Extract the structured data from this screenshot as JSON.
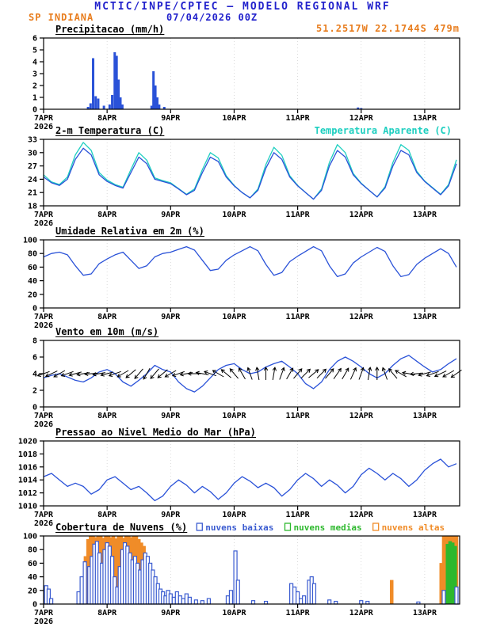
{
  "header": {
    "title": "MCTIC/INPE/CPTEC — MODELO REGIONAL WRF",
    "station": "SP INDIANA",
    "run_datetime": "07/04/2026 00Z",
    "coordinates": "51.2517W 22.1744S 479m"
  },
  "colors": {
    "header_blue": "#2222cc",
    "accent_orange": "#e87d1e",
    "line_blue": "#2a52d8",
    "aparente_cyan": "#1ecfc0",
    "cloud_low_blue": "#3a5bd0",
    "cloud_mid_green": "#2db82d",
    "cloud_high_orange": "#f08c28",
    "barb_black": "#000000"
  },
  "x_axis": {
    "tick_labels": [
      "7APR",
      "8APR",
      "9APR",
      "10APR",
      "11APR",
      "12APR",
      "13APR"
    ],
    "year_label": "2026",
    "t_max_days": 6.55
  },
  "chart_data": [
    {
      "id": "precipitation",
      "type": "bar",
      "title": "Precipitacao (mm/h)",
      "ylim": [
        0,
        6
      ],
      "yticks": [
        0,
        1,
        2,
        3,
        4,
        5,
        6
      ],
      "color_key": "line_blue",
      "points": [
        [
          0.7,
          0.2
        ],
        [
          0.74,
          0.5
        ],
        [
          0.78,
          4.3
        ],
        [
          0.82,
          1.1
        ],
        [
          0.86,
          0.9
        ],
        [
          0.95,
          0.3
        ],
        [
          1.04,
          0.4
        ],
        [
          1.08,
          1.2
        ],
        [
          1.12,
          4.8
        ],
        [
          1.15,
          4.5
        ],
        [
          1.18,
          2.5
        ],
        [
          1.21,
          1.0
        ],
        [
          1.24,
          0.4
        ],
        [
          1.7,
          0.3
        ],
        [
          1.73,
          3.2
        ],
        [
          1.76,
          2.0
        ],
        [
          1.79,
          1.0
        ],
        [
          1.82,
          0.4
        ],
        [
          1.9,
          0.2
        ],
        [
          4.95,
          0.15
        ],
        [
          5.0,
          0.1
        ]
      ]
    },
    {
      "id": "temperature",
      "type": "line",
      "title": "2-m Temperatura (C)",
      "legend": {
        "label": "Temperatura Aparente (C)",
        "color_key": "aparente_cyan"
      },
      "ylim": [
        18,
        33
      ],
      "yticks": [
        18,
        21,
        24,
        27,
        30,
        33
      ],
      "t_step_days": 0.125,
      "series": [
        {
          "name": "2-m Temperatura (C)",
          "color_key": "line_blue",
          "values": [
            24.5,
            23.2,
            22.6,
            24.0,
            28.5,
            31.0,
            29.5,
            25.0,
            23.5,
            22.6,
            22.0,
            25.5,
            29.0,
            27.5,
            24.0,
            23.5,
            23.0,
            21.8,
            20.5,
            21.5,
            25.5,
            29.0,
            28.0,
            24.5,
            22.5,
            21.0,
            19.8,
            21.5,
            26.5,
            30.0,
            28.5,
            24.5,
            22.5,
            21.0,
            19.5,
            21.5,
            27.0,
            30.5,
            29.0,
            25.0,
            23.0,
            21.5,
            20.0,
            22.0,
            27.0,
            30.5,
            29.5,
            25.5,
            23.5,
            22.0,
            20.5,
            22.5,
            27.5
          ]
        },
        {
          "name": "Temperatura Aparente (C)",
          "color_key": "aparente_cyan",
          "values": [
            25.0,
            23.4,
            22.8,
            24.5,
            29.5,
            32.3,
            30.5,
            25.5,
            23.8,
            22.8,
            22.2,
            26.2,
            30.0,
            28.3,
            24.3,
            23.7,
            23.2,
            21.9,
            20.6,
            21.8,
            26.2,
            30.0,
            28.8,
            24.8,
            22.6,
            21.0,
            19.8,
            21.8,
            27.3,
            31.2,
            29.4,
            24.8,
            22.6,
            21.0,
            19.5,
            21.8,
            27.8,
            31.8,
            30.0,
            25.3,
            23.1,
            21.5,
            20.0,
            22.3,
            27.8,
            31.8,
            30.5,
            25.8,
            23.6,
            22.1,
            20.6,
            22.8,
            28.4
          ]
        }
      ]
    },
    {
      "id": "relative-humidity",
      "type": "line",
      "title": "Umidade Relativa em 2m (%)",
      "ylim": [
        0,
        100
      ],
      "yticks": [
        0,
        20,
        40,
        60,
        80,
        100
      ],
      "t_step_days": 0.125,
      "series": [
        {
          "name": "Umidade Relativa em 2m (%)",
          "color_key": "line_blue",
          "values": [
            75,
            80,
            82,
            78,
            62,
            48,
            50,
            65,
            72,
            78,
            82,
            70,
            58,
            62,
            75,
            80,
            82,
            86,
            90,
            85,
            70,
            55,
            57,
            70,
            78,
            84,
            90,
            84,
            64,
            48,
            52,
            68,
            76,
            83,
            90,
            84,
            62,
            46,
            50,
            66,
            75,
            82,
            89,
            83,
            62,
            46,
            49,
            64,
            73,
            80,
            87,
            80,
            60
          ]
        }
      ]
    },
    {
      "id": "wind-10m",
      "type": "wind",
      "title": "Vento em 10m (m/s)",
      "ylim": [
        0,
        8
      ],
      "yticks": [
        0,
        2,
        4,
        6,
        8
      ],
      "t_step_days": 0.125,
      "series": [
        {
          "name": "Vento em 10m (m/s)",
          "color_key": "line_blue",
          "values": [
            3.5,
            3.8,
            4.0,
            3.6,
            3.2,
            3.0,
            3.5,
            4.2,
            4.5,
            4.0,
            3.0,
            2.5,
            3.2,
            4.0,
            5.0,
            4.5,
            4.2,
            3.0,
            2.2,
            1.8,
            2.5,
            3.5,
            4.5,
            5.0,
            5.2,
            4.5,
            4.0,
            4.2,
            4.8,
            5.2,
            5.5,
            4.8,
            4.0,
            2.8,
            2.2,
            3.0,
            4.5,
            5.5,
            6.0,
            5.5,
            4.8,
            4.0,
            3.5,
            4.0,
            5.0,
            5.8,
            6.2,
            5.5,
            4.8,
            4.2,
            4.5,
            5.2,
            5.8
          ]
        }
      ],
      "barbs": {
        "level": 4.0,
        "color_key": "barb_black",
        "dir_deg": [
          200,
          205,
          210,
          200,
          195,
          190,
          185,
          190,
          195,
          200,
          210,
          220,
          230,
          240,
          230,
          220,
          210,
          200,
          190,
          180,
          170,
          160,
          150,
          140,
          130,
          120,
          110,
          100,
          90,
          80,
          70,
          60,
          50,
          45,
          40,
          45,
          50,
          55,
          60,
          65,
          70,
          80,
          90,
          110,
          130,
          150,
          170,
          185,
          195,
          200,
          205,
          210,
          215
        ]
      }
    },
    {
      "id": "mslp",
      "type": "line",
      "title": "Pressao ao Nivel Medio do Mar (hPa)",
      "ylim": [
        1010,
        1020
      ],
      "yticks": [
        1010,
        1012,
        1014,
        1016,
        1018,
        1020
      ],
      "t_step_days": 0.125,
      "series": [
        {
          "name": "Pressao ao Nivel Medio do Mar (hPa)",
          "color_key": "line_blue",
          "values": [
            1014.5,
            1015.0,
            1014.0,
            1013.0,
            1013.5,
            1013.0,
            1011.8,
            1012.5,
            1014.0,
            1014.5,
            1013.5,
            1012.5,
            1013.0,
            1012.0,
            1010.8,
            1011.5,
            1013.0,
            1014.0,
            1013.2,
            1012.0,
            1013.0,
            1012.2,
            1011.0,
            1012.0,
            1013.5,
            1014.5,
            1013.8,
            1012.8,
            1013.5,
            1012.8,
            1011.5,
            1012.5,
            1014.0,
            1015.0,
            1014.2,
            1013.0,
            1014.0,
            1013.2,
            1012.0,
            1013.0,
            1014.8,
            1015.8,
            1015.0,
            1014.0,
            1015.0,
            1014.2,
            1013.0,
            1014.0,
            1015.5,
            1016.5,
            1017.2,
            1016.0,
            1016.5
          ]
        }
      ]
    },
    {
      "id": "cloud-cover",
      "type": "cloudbars",
      "title": "Cobertura de Nuvens (%)",
      "ylim": [
        0,
        100
      ],
      "yticks": [
        0,
        20,
        40,
        60,
        80,
        100
      ],
      "legend_items": [
        {
          "label": "nuvens baixas",
          "color_key": "cloud_low_blue"
        },
        {
          "label": "nuvens medias",
          "color_key": "cloud_mid_green"
        },
        {
          "label": "nuvens altas",
          "color_key": "cloud_high_orange"
        }
      ],
      "series": [
        {
          "name": "nuvens altas",
          "color_key": "cloud_high_orange",
          "fill": "solid",
          "points": [
            [
              0.62,
              35
            ],
            [
              0.66,
              70
            ],
            [
              0.7,
              95
            ],
            [
              0.74,
              100
            ],
            [
              0.78,
              100
            ],
            [
              0.82,
              98
            ],
            [
              0.86,
              100
            ],
            [
              0.9,
              100
            ],
            [
              0.94,
              97
            ],
            [
              0.98,
              100
            ],
            [
              1.02,
              100
            ],
            [
              1.06,
              98
            ],
            [
              1.1,
              100
            ],
            [
              1.14,
              96
            ],
            [
              1.18,
              100
            ],
            [
              1.22,
              100
            ],
            [
              1.26,
              97
            ],
            [
              1.3,
              100
            ],
            [
              1.34,
              100
            ],
            [
              1.38,
              98
            ],
            [
              1.42,
              100
            ],
            [
              1.46,
              100
            ],
            [
              1.5,
              95
            ],
            [
              1.54,
              90
            ],
            [
              1.58,
              85
            ],
            [
              1.62,
              45
            ],
            [
              1.66,
              20
            ],
            [
              5.48,
              35
            ],
            [
              6.26,
              60
            ],
            [
              6.3,
              100
            ],
            [
              6.34,
              100
            ],
            [
              6.38,
              100
            ],
            [
              6.42,
              100
            ],
            [
              6.46,
              100
            ],
            [
              6.5,
              100
            ]
          ]
        },
        {
          "name": "nuvens medias",
          "color_key": "cloud_mid_green",
          "fill": "solid",
          "points": [
            [
              6.36,
              88
            ],
            [
              6.4,
              92
            ],
            [
              6.44,
              90
            ],
            [
              6.48,
              85
            ]
          ]
        },
        {
          "name": "nuvens baixas",
          "color_key": "cloud_low_blue",
          "fill": "open",
          "points": [
            [
              0.04,
              27
            ],
            [
              0.08,
              22
            ],
            [
              0.12,
              8
            ],
            [
              0.55,
              18
            ],
            [
              0.6,
              40
            ],
            [
              0.65,
              62
            ],
            [
              0.72,
              55
            ],
            [
              0.76,
              70
            ],
            [
              0.8,
              88
            ],
            [
              0.84,
              92
            ],
            [
              0.88,
              75
            ],
            [
              0.92,
              60
            ],
            [
              0.96,
              80
            ],
            [
              1.0,
              90
            ],
            [
              1.04,
              85
            ],
            [
              1.08,
              70
            ],
            [
              1.12,
              40
            ],
            [
              1.16,
              25
            ],
            [
              1.2,
              55
            ],
            [
              1.24,
              80
            ],
            [
              1.28,
              90
            ],
            [
              1.32,
              85
            ],
            [
              1.36,
              75
            ],
            [
              1.4,
              65
            ],
            [
              1.44,
              70
            ],
            [
              1.48,
              60
            ],
            [
              1.52,
              50
            ],
            [
              1.56,
              65
            ],
            [
              1.6,
              75
            ],
            [
              1.64,
              70
            ],
            [
              1.68,
              60
            ],
            [
              1.72,
              50
            ],
            [
              1.76,
              40
            ],
            [
              1.8,
              30
            ],
            [
              1.84,
              22
            ],
            [
              1.88,
              18
            ],
            [
              1.92,
              12
            ],
            [
              1.96,
              20
            ],
            [
              2.0,
              15
            ],
            [
              2.05,
              10
            ],
            [
              2.1,
              18
            ],
            [
              2.15,
              12
            ],
            [
              2.2,
              8
            ],
            [
              2.25,
              15
            ],
            [
              2.3,
              10
            ],
            [
              2.4,
              6
            ],
            [
              2.5,
              5
            ],
            [
              2.6,
              8
            ],
            [
              2.9,
              12
            ],
            [
              2.95,
              20
            ],
            [
              3.02,
              78
            ],
            [
              3.06,
              35
            ],
            [
              3.3,
              5
            ],
            [
              3.5,
              4
            ],
            [
              3.9,
              30
            ],
            [
              3.95,
              25
            ],
            [
              4.0,
              18
            ],
            [
              4.05,
              8
            ],
            [
              4.1,
              12
            ],
            [
              4.18,
              35
            ],
            [
              4.22,
              40
            ],
            [
              4.26,
              30
            ],
            [
              4.5,
              6
            ],
            [
              4.6,
              4
            ],
            [
              5.0,
              5
            ],
            [
              5.1,
              4
            ],
            [
              5.9,
              3
            ],
            [
              6.3,
              20
            ],
            [
              6.5,
              25
            ]
          ]
        }
      ]
    }
  ]
}
